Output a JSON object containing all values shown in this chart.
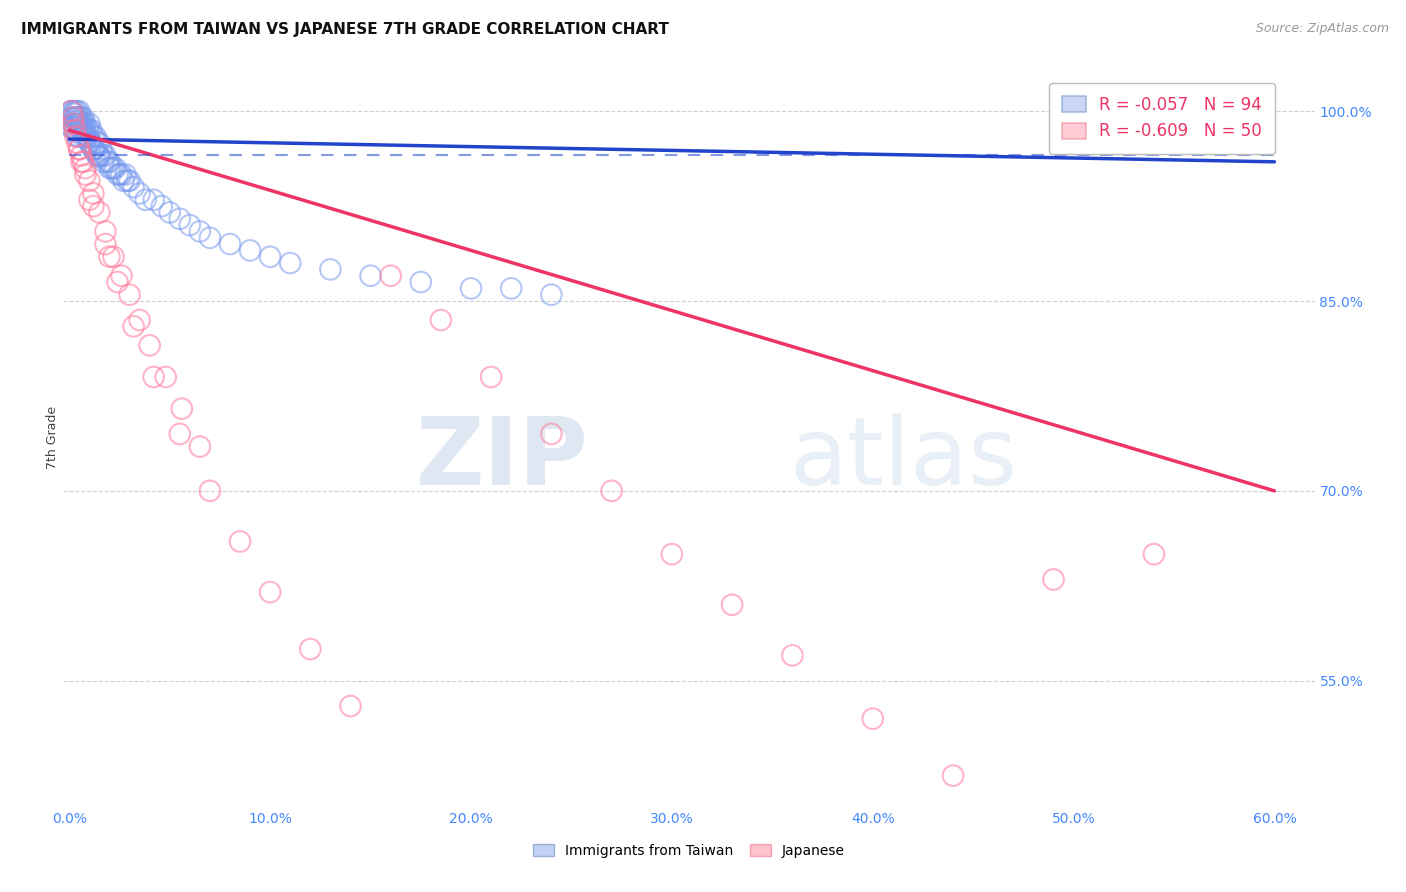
{
  "title": "IMMIGRANTS FROM TAIWAN VS JAPANESE 7TH GRADE CORRELATION CHART",
  "source": "Source: ZipAtlas.com",
  "ylabel": "7th Grade",
  "R_taiwan": -0.057,
  "N_taiwan": 94,
  "R_japanese": -0.609,
  "N_japanese": 50,
  "xlim": [
    -0.003,
    0.62
  ],
  "ylim": [
    45.0,
    103.5
  ],
  "yticks": [
    55.0,
    70.0,
    85.0,
    100.0
  ],
  "ytick_labels": [
    "55.0%",
    "70.0%",
    "85.0%",
    "100.0%"
  ],
  "xticks": [
    0.0,
    0.1,
    0.2,
    0.3,
    0.4,
    0.5,
    0.6
  ],
  "xtick_labels": [
    "0.0%",
    "10.0%",
    "20.0%",
    "30.0%",
    "40.0%",
    "50.0%",
    "60.0%"
  ],
  "taiwan_color": "#7799ee",
  "japanese_color": "#ff7799",
  "taiwan_trend_color": "#2244cc",
  "japanese_trend_color": "#ee3366",
  "taiwan_scatter_x": [
    0.001,
    0.001,
    0.001,
    0.002,
    0.002,
    0.002,
    0.002,
    0.003,
    0.003,
    0.003,
    0.003,
    0.004,
    0.004,
    0.004,
    0.004,
    0.005,
    0.005,
    0.005,
    0.005,
    0.006,
    0.006,
    0.006,
    0.007,
    0.007,
    0.007,
    0.008,
    0.008,
    0.008,
    0.009,
    0.009,
    0.01,
    0.01,
    0.01,
    0.011,
    0.011,
    0.012,
    0.012,
    0.013,
    0.013,
    0.014,
    0.014,
    0.015,
    0.015,
    0.016,
    0.017,
    0.018,
    0.019,
    0.02,
    0.021,
    0.022,
    0.023,
    0.024,
    0.025,
    0.026,
    0.027,
    0.028,
    0.029,
    0.03,
    0.032,
    0.035,
    0.038,
    0.042,
    0.046,
    0.05,
    0.055,
    0.06,
    0.065,
    0.07,
    0.08,
    0.09,
    0.1,
    0.11,
    0.13,
    0.15,
    0.175,
    0.2,
    0.22,
    0.24,
    0.001,
    0.002,
    0.003,
    0.004,
    0.005,
    0.006,
    0.007,
    0.008,
    0.009,
    0.01,
    0.011,
    0.012,
    0.013,
    0.015,
    0.017,
    0.02
  ],
  "taiwan_scatter_y": [
    100.0,
    99.5,
    98.8,
    100.0,
    99.5,
    99.0,
    98.5,
    100.0,
    99.5,
    99.0,
    98.5,
    100.0,
    99.5,
    99.0,
    98.0,
    100.0,
    99.5,
    99.0,
    98.0,
    99.5,
    99.0,
    98.5,
    99.5,
    99.0,
    98.0,
    99.0,
    98.5,
    98.0,
    98.5,
    98.0,
    99.0,
    98.5,
    97.5,
    98.5,
    97.5,
    98.0,
    97.0,
    98.0,
    97.0,
    97.5,
    96.5,
    97.5,
    96.5,
    97.0,
    96.5,
    96.5,
    96.0,
    96.0,
    95.5,
    95.5,
    95.5,
    95.0,
    95.0,
    95.0,
    94.5,
    95.0,
    94.5,
    94.5,
    94.0,
    93.5,
    93.0,
    93.0,
    92.5,
    92.0,
    91.5,
    91.0,
    90.5,
    90.0,
    89.5,
    89.0,
    88.5,
    88.0,
    87.5,
    87.0,
    86.5,
    86.0,
    86.0,
    85.5,
    100.0,
    99.8,
    99.5,
    99.2,
    99.0,
    98.8,
    98.5,
    98.2,
    97.9,
    97.6,
    97.3,
    97.0,
    96.7,
    96.4,
    96.0,
    95.5
  ],
  "japanese_scatter_x": [
    0.001,
    0.002,
    0.003,
    0.004,
    0.005,
    0.006,
    0.007,
    0.008,
    0.01,
    0.012,
    0.015,
    0.018,
    0.022,
    0.026,
    0.03,
    0.035,
    0.04,
    0.048,
    0.056,
    0.065,
    0.003,
    0.005,
    0.008,
    0.012,
    0.018,
    0.024,
    0.032,
    0.042,
    0.055,
    0.07,
    0.085,
    0.1,
    0.12,
    0.14,
    0.16,
    0.185,
    0.21,
    0.24,
    0.27,
    0.3,
    0.33,
    0.36,
    0.4,
    0.44,
    0.49,
    0.54,
    0.002,
    0.006,
    0.01,
    0.02
  ],
  "japanese_scatter_y": [
    100.0,
    99.0,
    98.0,
    97.5,
    97.0,
    96.5,
    96.0,
    95.5,
    94.5,
    93.5,
    92.0,
    90.5,
    88.5,
    87.0,
    85.5,
    83.5,
    81.5,
    79.0,
    76.5,
    73.5,
    98.5,
    97.0,
    95.0,
    92.5,
    89.5,
    86.5,
    83.0,
    79.0,
    74.5,
    70.0,
    66.0,
    62.0,
    57.5,
    53.0,
    87.0,
    83.5,
    79.0,
    74.5,
    70.0,
    65.0,
    61.0,
    57.0,
    52.0,
    47.5,
    63.0,
    65.0,
    99.5,
    96.0,
    93.0,
    88.5
  ],
  "taiwan_trend_x": [
    0.0,
    0.6
  ],
  "taiwan_trend_y": [
    97.8,
    96.0
  ],
  "japanese_trend_x": [
    0.0,
    0.6
  ],
  "japanese_trend_y": [
    98.5,
    70.0
  ],
  "dashed_line_x": [
    0.0,
    0.6
  ],
  "dashed_line_y": [
    96.5,
    96.5
  ],
  "watermark_zip": "ZIP",
  "watermark_atlas": "atlas",
  "background_color": "#ffffff",
  "grid_color": "#cccccc",
  "tick_label_color": "#4488ff",
  "title_fontsize": 11,
  "source_fontsize": 9,
  "tick_fontsize": 10
}
